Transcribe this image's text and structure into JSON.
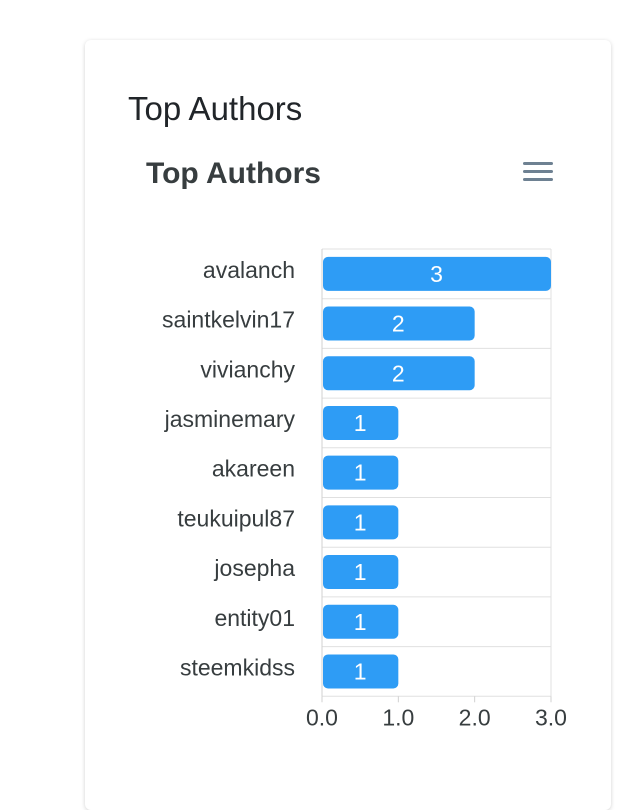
{
  "card": {
    "title": "Top Authors"
  },
  "chart_data": {
    "type": "bar",
    "orientation": "horizontal",
    "title": "Top Authors",
    "categories": [
      "avalanch",
      "saintkelvin17",
      "vivianchy",
      "jasminemary",
      "akareen",
      "teukuipul87",
      "josepha",
      "entity01",
      "steemkidss"
    ],
    "values": [
      3,
      2,
      2,
      1,
      1,
      1,
      1,
      1,
      1
    ],
    "xlim": [
      0,
      3
    ],
    "xticks": [
      "0.0",
      "1.0",
      "2.0",
      "3.0"
    ],
    "xlabel": "",
    "ylabel": "",
    "grid": true,
    "data_labels": true,
    "bar_color": "#2e9cf5",
    "label_color": "#ffffff"
  },
  "toolbar": {
    "menu_icon": "hamburger-menu-icon"
  }
}
